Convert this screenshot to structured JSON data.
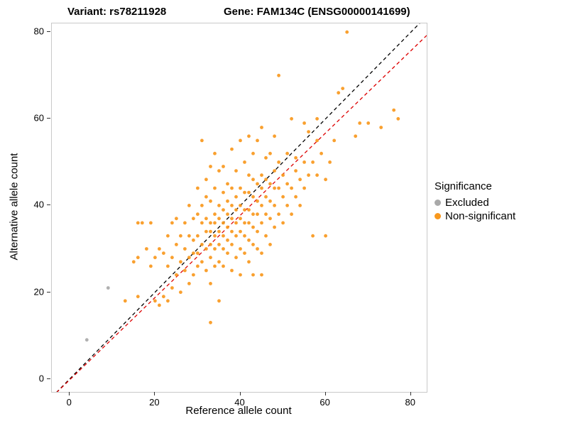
{
  "title": {
    "variant": "Variant: rs78211928",
    "gene": "Gene: FAM134C (ENSG00000141699)"
  },
  "axes": {
    "x_label": "Reference allele count",
    "y_label": "Alternative allele count",
    "x_ticks": [
      0,
      20,
      40,
      60,
      80
    ],
    "y_ticks": [
      0,
      20,
      40,
      60,
      80
    ]
  },
  "legend": {
    "title": "Significance",
    "items": [
      {
        "label": "Excluded",
        "color": "#A9A9A9"
      },
      {
        "label": "Non-significant",
        "color": "#F8981D"
      }
    ]
  },
  "chart_data": {
    "type": "scatter",
    "title": "Variant: rs78211928 — Gene: FAM134C (ENSG00000141699)",
    "xlabel": "Reference allele count",
    "ylabel": "Alternative allele count",
    "xlim": [
      -4.2,
      83.7
    ],
    "ylim": [
      -3,
      82
    ],
    "grid": false,
    "legend_position": "right",
    "lines": [
      {
        "name": "identity",
        "style": "dashed",
        "color": "#000000",
        "slope": 1,
        "intercept": 0
      },
      {
        "name": "regression",
        "style": "dashed",
        "color": "#DD0000",
        "slope": 0.949,
        "intercept": -0.2
      }
    ],
    "series": [
      {
        "name": "Excluded",
        "color": "#A9A9A9",
        "points": [
          [
            4,
            9
          ],
          [
            9,
            21
          ]
        ]
      },
      {
        "name": "Non-significant",
        "color": "#F8981D",
        "points": [
          [
            13,
            18
          ],
          [
            15,
            27
          ],
          [
            16,
            19
          ],
          [
            16,
            28
          ],
          [
            16,
            36
          ],
          [
            17,
            36
          ],
          [
            18,
            30
          ],
          [
            19,
            26
          ],
          [
            19,
            36
          ],
          [
            20,
            18
          ],
          [
            20,
            28
          ],
          [
            21,
            17
          ],
          [
            21,
            30
          ],
          [
            22,
            19
          ],
          [
            22,
            29
          ],
          [
            23,
            18
          ],
          [
            23,
            26
          ],
          [
            23,
            33
          ],
          [
            24,
            21
          ],
          [
            24,
            28
          ],
          [
            24,
            36
          ],
          [
            25,
            24
          ],
          [
            25,
            31
          ],
          [
            25,
            37
          ],
          [
            26,
            20
          ],
          [
            26,
            27
          ],
          [
            26,
            33
          ],
          [
            27,
            25
          ],
          [
            27,
            30
          ],
          [
            27,
            36
          ],
          [
            28,
            22
          ],
          [
            28,
            28
          ],
          [
            28,
            33
          ],
          [
            28,
            40
          ],
          [
            29,
            24
          ],
          [
            29,
            29
          ],
          [
            29,
            32
          ],
          [
            29,
            37
          ],
          [
            30,
            26
          ],
          [
            30,
            29
          ],
          [
            30,
            33
          ],
          [
            30,
            38
          ],
          [
            30,
            44
          ],
          [
            31,
            27
          ],
          [
            31,
            31
          ],
          [
            31,
            36
          ],
          [
            31,
            40
          ],
          [
            31,
            55
          ],
          [
            32,
            25
          ],
          [
            32,
            30
          ],
          [
            32,
            34
          ],
          [
            32,
            37
          ],
          [
            32,
            42
          ],
          [
            32,
            46
          ],
          [
            33,
            13
          ],
          [
            33,
            22
          ],
          [
            33,
            28
          ],
          [
            33,
            31
          ],
          [
            33,
            34
          ],
          [
            33,
            36
          ],
          [
            33,
            41
          ],
          [
            33,
            49
          ],
          [
            34,
            26
          ],
          [
            34,
            30
          ],
          [
            34,
            33
          ],
          [
            34,
            36
          ],
          [
            34,
            38
          ],
          [
            34,
            44
          ],
          [
            34,
            52
          ],
          [
            35,
            18
          ],
          [
            35,
            27
          ],
          [
            35,
            31
          ],
          [
            35,
            34
          ],
          [
            35,
            37
          ],
          [
            35,
            40
          ],
          [
            35,
            48
          ],
          [
            36,
            26
          ],
          [
            36,
            30
          ],
          [
            36,
            33
          ],
          [
            36,
            36
          ],
          [
            36,
            39
          ],
          [
            36,
            43
          ],
          [
            36,
            49
          ],
          [
            37,
            29
          ],
          [
            37,
            32
          ],
          [
            37,
            35
          ],
          [
            37,
            38
          ],
          [
            37,
            41
          ],
          [
            37,
            45
          ],
          [
            38,
            25
          ],
          [
            38,
            31
          ],
          [
            38,
            34
          ],
          [
            38,
            37
          ],
          [
            38,
            40
          ],
          [
            38,
            44
          ],
          [
            38,
            53
          ],
          [
            39,
            28
          ],
          [
            39,
            33
          ],
          [
            39,
            36
          ],
          [
            39,
            39
          ],
          [
            39,
            42
          ],
          [
            39,
            48
          ],
          [
            40,
            24
          ],
          [
            40,
            30
          ],
          [
            40,
            34
          ],
          [
            40,
            37
          ],
          [
            40,
            40
          ],
          [
            40,
            44
          ],
          [
            40,
            55
          ],
          [
            41,
            29
          ],
          [
            41,
            33
          ],
          [
            41,
            36
          ],
          [
            41,
            39
          ],
          [
            41,
            43
          ],
          [
            41,
            50
          ],
          [
            42,
            27
          ],
          [
            42,
            32
          ],
          [
            42,
            36
          ],
          [
            42,
            39
          ],
          [
            42,
            43
          ],
          [
            42,
            47
          ],
          [
            42,
            56
          ],
          [
            43,
            24
          ],
          [
            43,
            31
          ],
          [
            43,
            35
          ],
          [
            43,
            38
          ],
          [
            43,
            42
          ],
          [
            43,
            46
          ],
          [
            43,
            52
          ],
          [
            44,
            30
          ],
          [
            44,
            34
          ],
          [
            44,
            38
          ],
          [
            44,
            41
          ],
          [
            44,
            45
          ],
          [
            44,
            55
          ],
          [
            45,
            24
          ],
          [
            45,
            29
          ],
          [
            45,
            36
          ],
          [
            45,
            40
          ],
          [
            45,
            44
          ],
          [
            45,
            47
          ],
          [
            45,
            58
          ],
          [
            46,
            33
          ],
          [
            46,
            38
          ],
          [
            46,
            42
          ],
          [
            46,
            46
          ],
          [
            46,
            51
          ],
          [
            47,
            31
          ],
          [
            47,
            37
          ],
          [
            47,
            41
          ],
          [
            47,
            45
          ],
          [
            47,
            52
          ],
          [
            48,
            35
          ],
          [
            48,
            40
          ],
          [
            48,
            44
          ],
          [
            48,
            48
          ],
          [
            48,
            56
          ],
          [
            49,
            38
          ],
          [
            49,
            44
          ],
          [
            49,
            50
          ],
          [
            49,
            70
          ],
          [
            50,
            36
          ],
          [
            50,
            42
          ],
          [
            50,
            47
          ],
          [
            51,
            40
          ],
          [
            51,
            45
          ],
          [
            51,
            52
          ],
          [
            52,
            38
          ],
          [
            52,
            44
          ],
          [
            52,
            60
          ],
          [
            53,
            42
          ],
          [
            53,
            48
          ],
          [
            53,
            51
          ],
          [
            54,
            40
          ],
          [
            54,
            46
          ],
          [
            55,
            44
          ],
          [
            55,
            50
          ],
          [
            55,
            59
          ],
          [
            56,
            47
          ],
          [
            56,
            57
          ],
          [
            57,
            33
          ],
          [
            57,
            50
          ],
          [
            58,
            47
          ],
          [
            58,
            55
          ],
          [
            58,
            60
          ],
          [
            59,
            52
          ],
          [
            60,
            33
          ],
          [
            60,
            46
          ],
          [
            61,
            50
          ],
          [
            62,
            55
          ],
          [
            63,
            66
          ],
          [
            64,
            67
          ],
          [
            65,
            80
          ],
          [
            67,
            56
          ],
          [
            68,
            59
          ],
          [
            70,
            59
          ],
          [
            73,
            58
          ],
          [
            76,
            62
          ],
          [
            77,
            60
          ]
        ]
      }
    ]
  }
}
